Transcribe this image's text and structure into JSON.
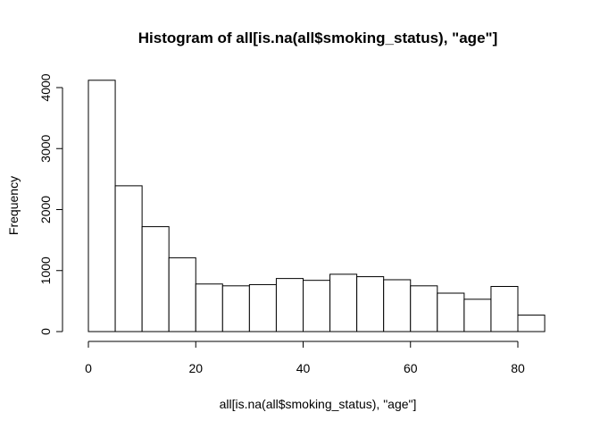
{
  "chart_data": {
    "type": "bar",
    "subtype": "histogram",
    "title": "Histogram of all[is.na(all$smoking_status), \"age\"]",
    "xlabel": "all[is.na(all$smoking_status), \"age\"]",
    "ylabel": "Frequency",
    "bin_width": 5,
    "bins": [
      {
        "x0": 0,
        "x1": 5,
        "count": 4120
      },
      {
        "x0": 5,
        "x1": 10,
        "count": 2390
      },
      {
        "x0": 10,
        "x1": 15,
        "count": 1720
      },
      {
        "x0": 15,
        "x1": 20,
        "count": 1210
      },
      {
        "x0": 20,
        "x1": 25,
        "count": 780
      },
      {
        "x0": 25,
        "x1": 30,
        "count": 750
      },
      {
        "x0": 30,
        "x1": 35,
        "count": 770
      },
      {
        "x0": 35,
        "x1": 40,
        "count": 870
      },
      {
        "x0": 40,
        "x1": 45,
        "count": 840
      },
      {
        "x0": 45,
        "x1": 50,
        "count": 940
      },
      {
        "x0": 50,
        "x1": 55,
        "count": 900
      },
      {
        "x0": 55,
        "x1": 60,
        "count": 850
      },
      {
        "x0": 60,
        "x1": 65,
        "count": 750
      },
      {
        "x0": 65,
        "x1": 70,
        "count": 630
      },
      {
        "x0": 70,
        "x1": 75,
        "count": 530
      },
      {
        "x0": 75,
        "x1": 80,
        "count": 740
      },
      {
        "x0": 80,
        "x1": 85,
        "count": 270
      }
    ],
    "xlim": [
      0,
      85
    ],
    "ylim": [
      0,
      4200
    ],
    "x_ticks": [
      0,
      20,
      40,
      60,
      80
    ],
    "y_ticks": [
      0,
      1000,
      2000,
      3000,
      4000
    ],
    "x_tick_labels": [
      "0",
      "20",
      "40",
      "60",
      "80"
    ],
    "y_tick_labels": [
      "0",
      "1000",
      "2000",
      "3000",
      "4000"
    ],
    "grid": false,
    "legend": "none",
    "bar_fill": "#ffffff",
    "bar_stroke": "#000000"
  }
}
